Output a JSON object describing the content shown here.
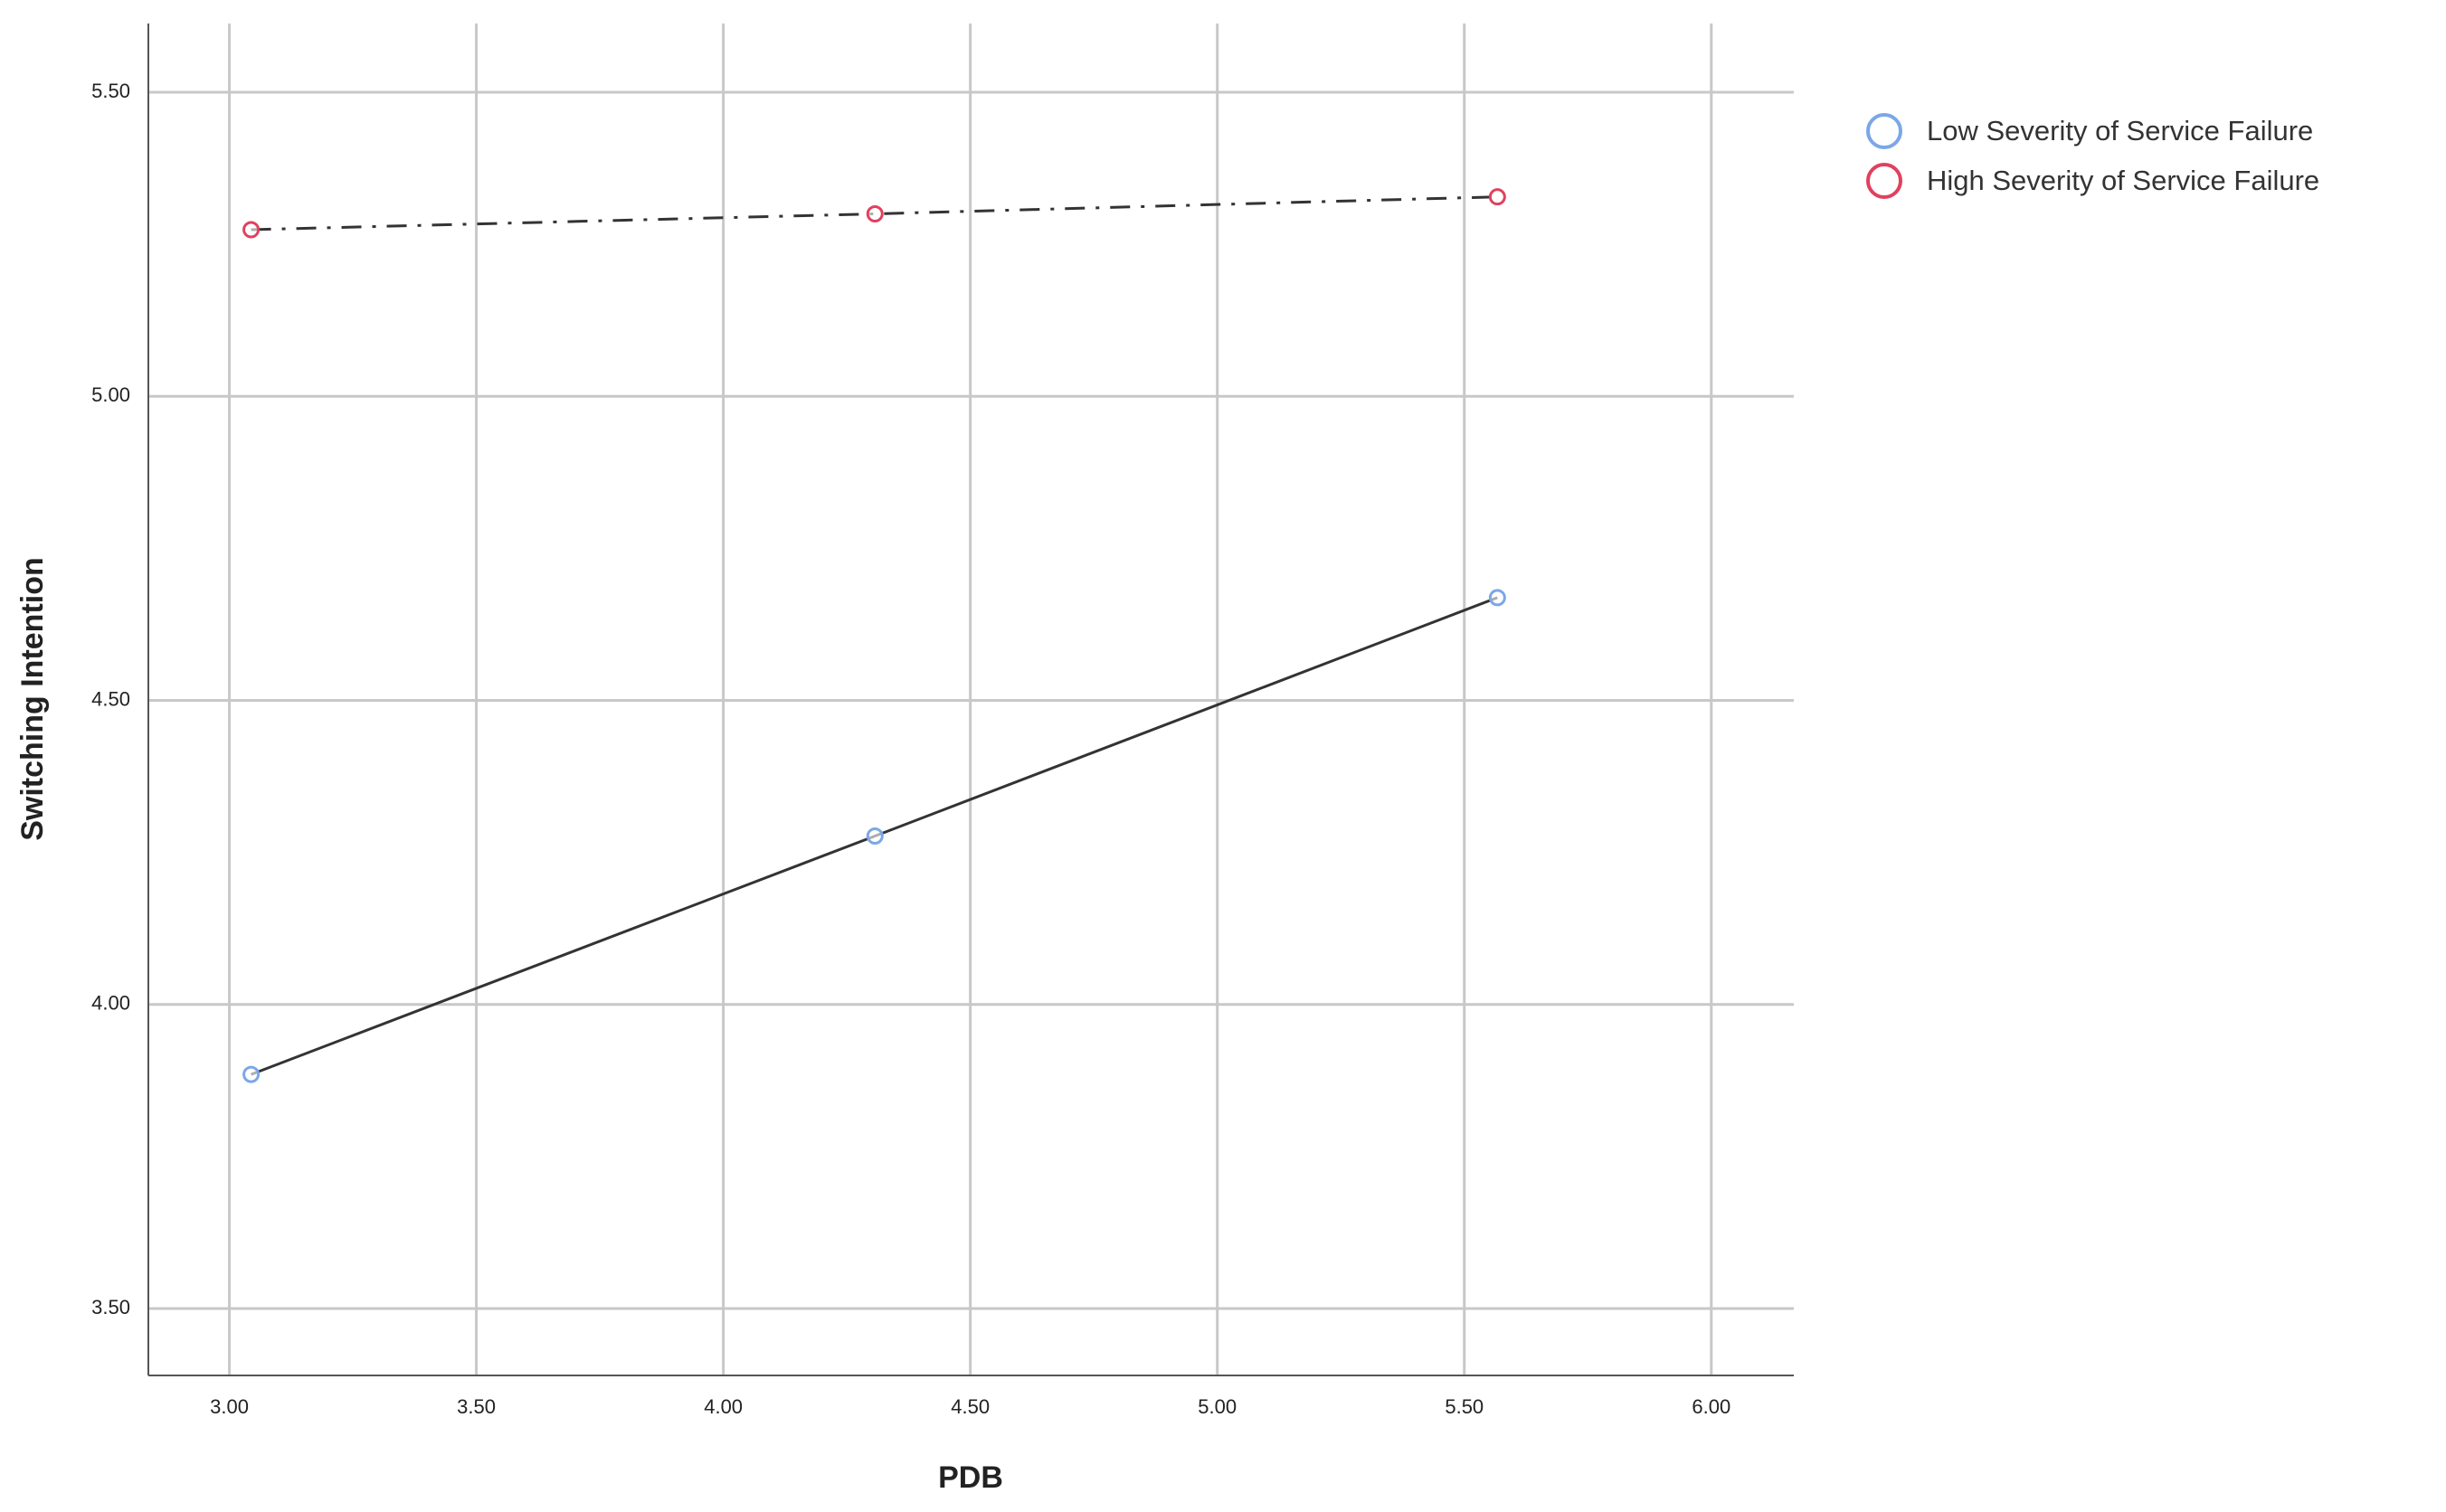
{
  "chart_data": {
    "type": "line",
    "x_label": "PDB",
    "y_label": "Switching Intention",
    "xlim": [
      2.836,
      6.167
    ],
    "ylim": [
      3.39,
      5.613
    ],
    "xticks": [
      {
        "value": 3,
        "label": "3.00"
      },
      {
        "value": 3.5,
        "label": "3.50"
      },
      {
        "value": 4,
        "label": "4.00"
      },
      {
        "value": 4.5,
        "label": "4.50"
      },
      {
        "value": 5,
        "label": "5.00"
      },
      {
        "value": 5.5,
        "label": "5.50"
      },
      {
        "value": 6,
        "label": "6.00"
      }
    ],
    "yticks": [
      {
        "value": 3.5,
        "label": "3.50"
      },
      {
        "value": 4,
        "label": "4.00"
      },
      {
        "value": 4.5,
        "label": "4.50"
      },
      {
        "value": 5,
        "label": "5.00"
      },
      {
        "value": 5.5,
        "label": "5.50"
      }
    ],
    "grid": true,
    "legend": "right",
    "series": [
      {
        "name": "Low Severity of Service Failure",
        "color": "#7ba7e8",
        "line_color": "#333333",
        "line_style": "solid",
        "x": [
          3.044,
          4.307,
          5.567
        ],
        "values": [
          3.885,
          4.277,
          4.669
        ]
      },
      {
        "name": "High Severity of Service Failure",
        "color": "#e0415f",
        "line_color": "#333333",
        "line_style": "dashdot",
        "x": [
          3.044,
          4.307,
          5.567
        ],
        "values": [
          5.274,
          5.3,
          5.328
        ]
      }
    ]
  }
}
